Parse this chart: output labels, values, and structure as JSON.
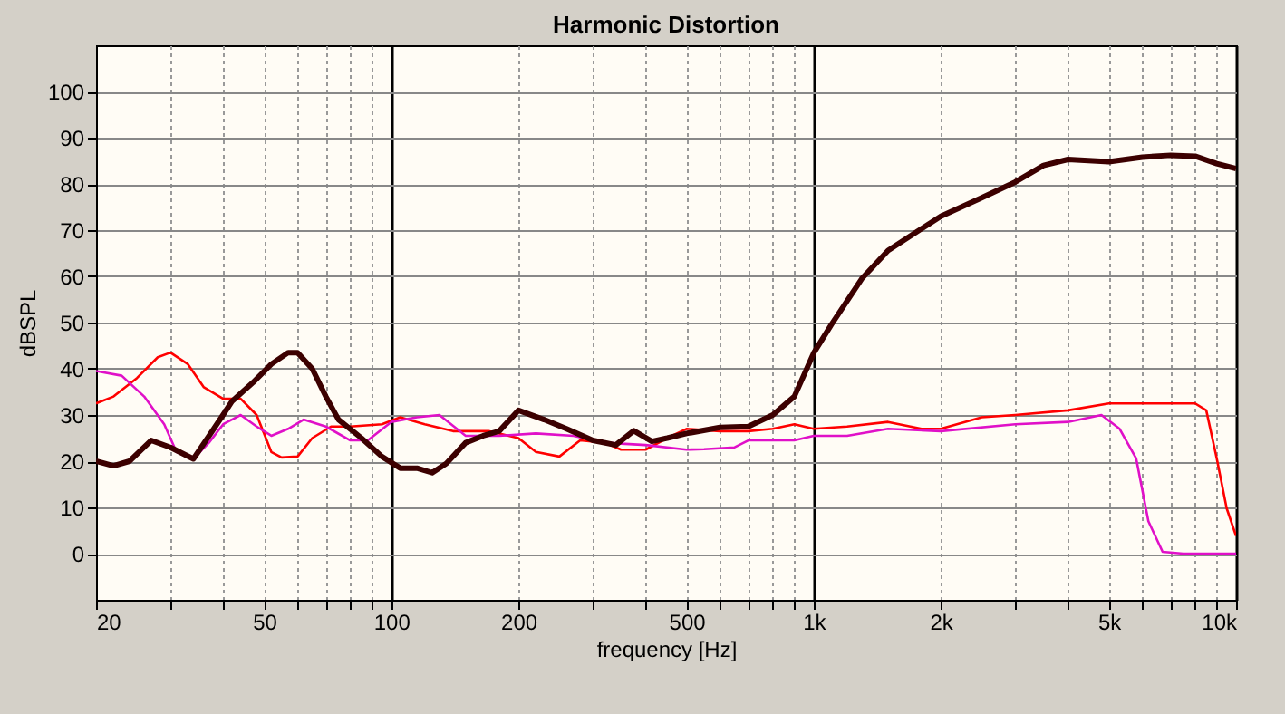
{
  "chart_data": {
    "type": "line",
    "title": "Harmonic Distortion",
    "xlabel": "frequency [Hz]",
    "ylabel": "dBSPL",
    "log": "x",
    "grid": true,
    "marker": "none",
    "line_style": "solid",
    "xlim": [
      20,
      10000
    ],
    "ylim": [
      -10,
      110
    ],
    "xticks": [
      20,
      {
        "value": 30,
        "label": null
      },
      {
        "value": 40,
        "label": null
      },
      50,
      {
        "value": 60,
        "label": null
      },
      {
        "value": 70,
        "label": null
      },
      {
        "value": 80,
        "label": null
      },
      {
        "value": 90,
        "label": null
      },
      100,
      200,
      {
        "value": 300,
        "label": null
      },
      {
        "value": 400,
        "label": null
      },
      500,
      {
        "value": 600,
        "label": null
      },
      {
        "value": 700,
        "label": null
      },
      {
        "value": 800,
        "label": null
      },
      {
        "value": 900,
        "label": null
      },
      {
        "value": 1000,
        "label": "1k"
      },
      {
        "value": 2000,
        "label": "2k"
      },
      {
        "value": 3000,
        "label": null
      },
      {
        "value": 4000,
        "label": null
      },
      {
        "value": 5000,
        "label": "5k"
      },
      {
        "value": 6000,
        "label": null
      },
      {
        "value": 7000,
        "label": null
      },
      {
        "value": 8000,
        "label": null
      },
      {
        "value": 9000,
        "label": null
      },
      {
        "value": 10000,
        "label": "10k"
      }
    ],
    "yticks": [
      0,
      10,
      20,
      30,
      40,
      50,
      60,
      70,
      80,
      90,
      100
    ],
    "series": [
      {
        "color": "#ff0000",
        "x": [
          20,
          22,
          25,
          28,
          30,
          33,
          36,
          40,
          44,
          48,
          52,
          55,
          60,
          65,
          72,
          80,
          95,
          105,
          120,
          140,
          170,
          200,
          220,
          250,
          280,
          320,
          350,
          400,
          450,
          500,
          600,
          700,
          800,
          900,
          1000,
          1200,
          1500,
          1800,
          2000,
          2500,
          3000,
          4000,
          5000,
          7000,
          8000,
          8500,
          9000,
          9500,
          10000
        ],
        "values": [
          32.5,
          34,
          38,
          42.5,
          43.5,
          41,
          36,
          33.5,
          33.5,
          30,
          22,
          20.8,
          21,
          25,
          27.5,
          27.5,
          28,
          29.5,
          28,
          26.5,
          26.5,
          25,
          22,
          21,
          24.5,
          24,
          22.5,
          22.5,
          25,
          27,
          26.5,
          26.5,
          27,
          28,
          27,
          27.5,
          28.5,
          27,
          27,
          29.5,
          30,
          31,
          32.5,
          32.5,
          32.5,
          31,
          20.6,
          9.8,
          3.8
        ]
      },
      {
        "color": "#e010c8",
        "x": [
          20,
          23,
          26,
          29,
          31,
          34,
          37,
          40,
          44,
          48,
          52,
          57,
          62,
          70,
          80,
          88,
          100,
          115,
          130,
          150,
          180,
          220,
          270,
          320,
          400,
          500,
          550,
          650,
          700,
          900,
          1000,
          1200,
          1500,
          2000,
          3000,
          4000,
          4800,
          5300,
          5800,
          6200,
          6700,
          7500,
          8000,
          10000
        ],
        "values": [
          39.5,
          38.5,
          34,
          28,
          22,
          20.5,
          24,
          28,
          30,
          27.5,
          25.5,
          27,
          29,
          27.5,
          24.5,
          24.5,
          28.5,
          29.5,
          30,
          25.5,
          25.5,
          26,
          25.5,
          24,
          23.5,
          22.5,
          22.6,
          23,
          24.5,
          24.5,
          25.5,
          25.5,
          27,
          26.5,
          28,
          28.5,
          30,
          27,
          20.6,
          7,
          0.4,
          0,
          0,
          0
        ]
      },
      {
        "color": "#3c0000",
        "x": [
          20,
          22,
          24,
          27,
          30,
          34,
          38,
          42,
          47,
          52,
          57,
          60,
          65,
          70,
          75,
          85,
          95,
          105,
          115,
          125,
          135,
          150,
          165,
          180,
          200,
          230,
          260,
          300,
          340,
          375,
          414,
          450,
          500,
          600,
          700,
          800,
          900,
          1000,
          1100,
          1300,
          1500,
          1800,
          2000,
          2500,
          3000,
          3500,
          4000,
          5000,
          6000,
          7000,
          8000,
          9000,
          10000
        ],
        "values": [
          20,
          19,
          20,
          24.5,
          23,
          20.5,
          27,
          33,
          37,
          41,
          43.5,
          43.5,
          40,
          34,
          29,
          25,
          21,
          18.5,
          18.5,
          17.5,
          19.5,
          24,
          25.5,
          26.5,
          31,
          29,
          27,
          24.5,
          23.5,
          26.6,
          24.3,
          25,
          26,
          27.3,
          27.5,
          30,
          34,
          43.4,
          49.5,
          59.5,
          65.6,
          70.3,
          73,
          77,
          80.4,
          84,
          85.3,
          84.8,
          85.8,
          86.2,
          86,
          84.4,
          83.3
        ]
      }
    ]
  }
}
